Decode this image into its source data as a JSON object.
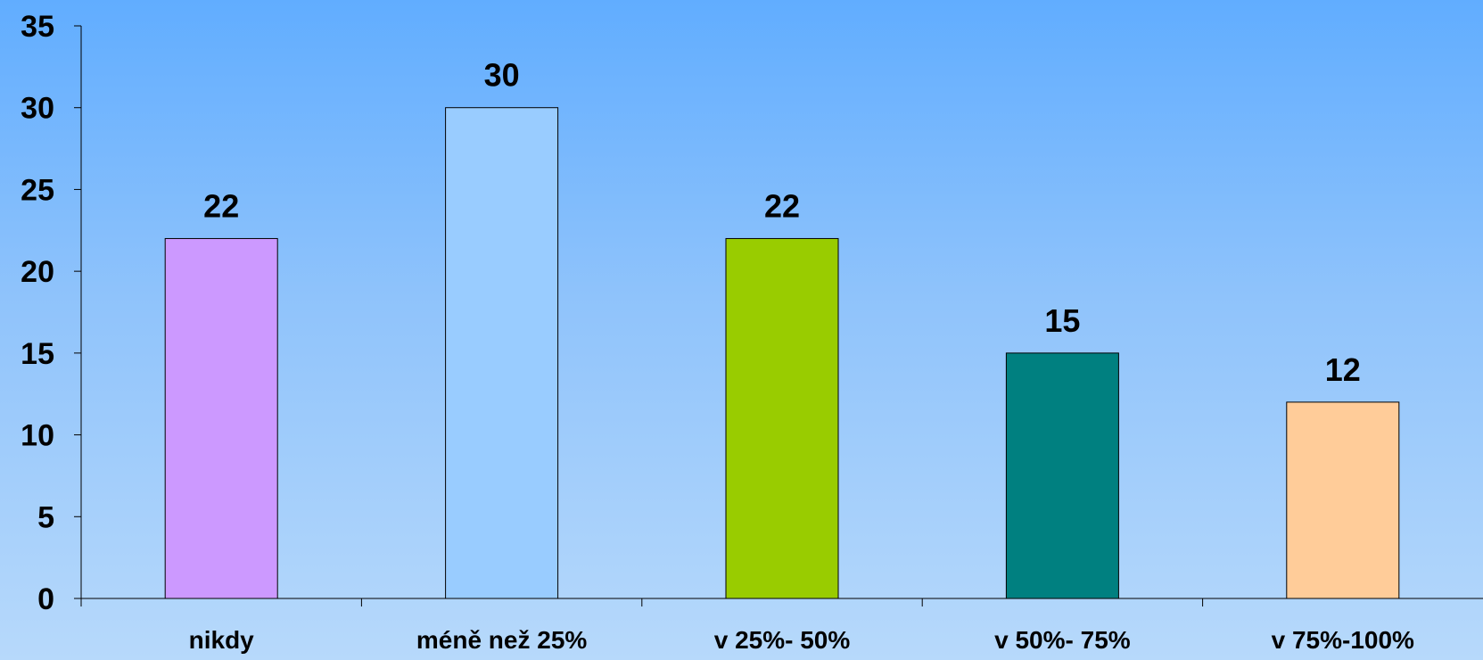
{
  "chart_data": {
    "type": "bar",
    "categories": [
      "nikdy",
      "méně než 25%",
      "v 25%- 50%",
      "v 50%- 75%",
      "v 75%-100%"
    ],
    "values": [
      22,
      30,
      22,
      15,
      12
    ],
    "data_labels": [
      "22",
      "30",
      "22",
      "15",
      "12"
    ],
    "colors": [
      "#cc99ff",
      "#99ccff",
      "#99cc00",
      "#008080",
      "#ffcc99"
    ],
    "ylim": [
      0,
      35
    ],
    "yticks": [
      0,
      5,
      10,
      15,
      20,
      25,
      30,
      35
    ],
    "ytick_labels": [
      "0",
      "5",
      "10",
      "15",
      "20",
      "25",
      "30",
      "35"
    ],
    "grid": false,
    "legend": "none",
    "title": "",
    "xlabel": "",
    "ylabel": ""
  }
}
